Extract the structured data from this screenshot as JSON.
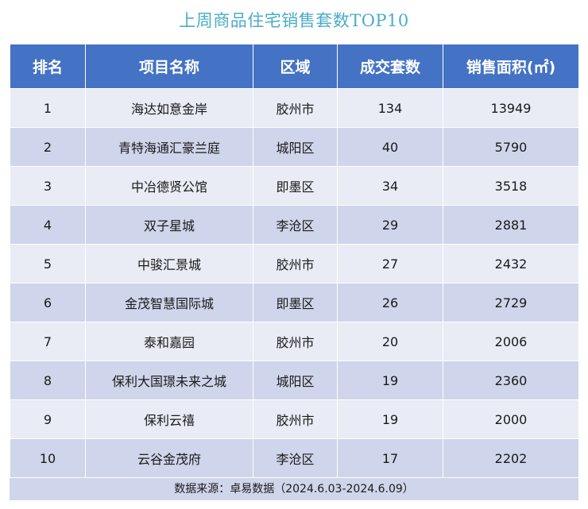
{
  "title": "上周商品住宅销售套数TOP10",
  "table": {
    "headers": [
      "排名",
      "项目名称",
      "区域",
      "成交套数",
      "销售面积(㎡)"
    ],
    "rows": [
      [
        "1",
        "海达如意金岸",
        "胶州市",
        "134",
        "13949"
      ],
      [
        "2",
        "青特海通汇豪兰庭",
        "城阳区",
        "40",
        "5790"
      ],
      [
        "3",
        "中冶德贤公馆",
        "即墨区",
        "34",
        "3518"
      ],
      [
        "4",
        "双子星城",
        "李沧区",
        "29",
        "2881"
      ],
      [
        "5",
        "中骏汇景城",
        "胶州市",
        "27",
        "2432"
      ],
      [
        "6",
        "金茂智慧国际城",
        "即墨区",
        "26",
        "2729"
      ],
      [
        "7",
        "泰和嘉园",
        "胶州市",
        "20",
        "2006"
      ],
      [
        "8",
        "保利大国璟未来之城",
        "城阳区",
        "19",
        "2360"
      ],
      [
        "9",
        "保利云禧",
        "胶州市",
        "19",
        "2000"
      ],
      [
        "10",
        "云谷金茂府",
        "李沧区",
        "17",
        "2202"
      ]
    ]
  },
  "footer": "数据来源：卓易数据（2024.6.03-2024.6.09）",
  "colors": {
    "title": "#4bacc6",
    "header_bg": "#4472c4",
    "row_light": "#e9ebf5",
    "row_dark": "#cfd5ea"
  }
}
